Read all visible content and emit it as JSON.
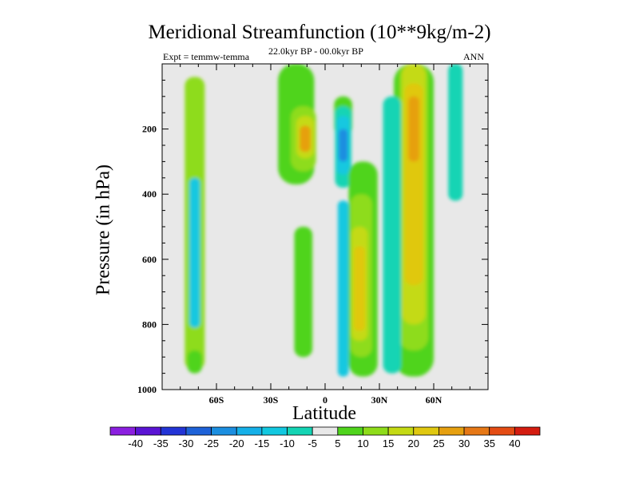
{
  "chart_data": {
    "type": "contour",
    "title": "Meridional Streamfunction (10**9kg/m-2)",
    "subtitle_left": "Expt = temmw-temma",
    "subtitle_center": "22.0kyr BP - 00.0kyr BP",
    "subtitle_right": "ANN",
    "xlabel": "Latitude",
    "ylabel": "Pressure (in hPa)",
    "xlim": [
      -90,
      90
    ],
    "ylim": [
      1000,
      0
    ],
    "x_ticks": [
      {
        "value": -60,
        "label": "60S"
      },
      {
        "value": -30,
        "label": "30S"
      },
      {
        "value": 0,
        "label": "0"
      },
      {
        "value": 30,
        "label": "30N"
      },
      {
        "value": 60,
        "label": "60N"
      }
    ],
    "y_ticks": [
      {
        "value": 200,
        "label": "200"
      },
      {
        "value": 400,
        "label": "400"
      },
      {
        "value": 600,
        "label": "600"
      },
      {
        "value": 800,
        "label": "800"
      },
      {
        "value": 1000,
        "label": "1000"
      }
    ],
    "colorbar": {
      "labels": [
        "-40",
        "-35",
        "-30",
        "-25",
        "-20",
        "-15",
        "-10",
        "-5",
        "5",
        "10",
        "15",
        "20",
        "25",
        "30",
        "35",
        "40"
      ],
      "colors": [
        "#8b1fe0",
        "#5a14d4",
        "#2334d6",
        "#1e62d8",
        "#1b8ee0",
        "#15b0e8",
        "#12c8e0",
        "#14d4b4",
        "#e8e8e8",
        "#4fd41c",
        "#8edc1a",
        "#c4da14",
        "#e0c810",
        "#e6a010",
        "#e67816",
        "#e44c14",
        "#d41c10"
      ]
    },
    "contour_cells": [
      {
        "lat": -72,
        "p": 40,
        "w": 11,
        "h": 900,
        "c": 10
      },
      {
        "lat": -72,
        "p": 350,
        "w": 6,
        "h": 460,
        "c": 6
      },
      {
        "lat": -72,
        "p": 880,
        "w": 8,
        "h": 70,
        "c": 9
      },
      {
        "lat": -41,
        "p": 185,
        "w": 8,
        "h": 100,
        "c": 8
      },
      {
        "lat": -16,
        "p": 0,
        "w": 20,
        "h": 370,
        "c": 9
      },
      {
        "lat": -12,
        "p": 130,
        "w": 14,
        "h": 200,
        "c": 10
      },
      {
        "lat": -11,
        "p": 160,
        "w": 10,
        "h": 130,
        "c": 11
      },
      {
        "lat": -11,
        "p": 190,
        "w": 6,
        "h": 80,
        "c": 13
      },
      {
        "lat": -12,
        "p": 500,
        "w": 10,
        "h": 400,
        "c": 9
      },
      {
        "lat": 10,
        "p": 100,
        "w": 10,
        "h": 120,
        "c": 9
      },
      {
        "lat": 10,
        "p": 130,
        "w": 9,
        "h": 250,
        "c": 7
      },
      {
        "lat": 10,
        "p": 160,
        "w": 7,
        "h": 180,
        "c": 6
      },
      {
        "lat": 10,
        "p": 200,
        "w": 5,
        "h": 100,
        "c": 4
      },
      {
        "lat": 10,
        "p": 420,
        "w": 6,
        "h": 540,
        "c": 6
      },
      {
        "lat": 21,
        "p": 300,
        "w": 16,
        "h": 660,
        "c": 9
      },
      {
        "lat": 20,
        "p": 400,
        "w": 12,
        "h": 500,
        "c": 10
      },
      {
        "lat": 19,
        "p": 500,
        "w": 9,
        "h": 350,
        "c": 11
      },
      {
        "lat": 19,
        "p": 560,
        "w": 6,
        "h": 260,
        "c": 12
      },
      {
        "lat": 49,
        "p": 0,
        "w": 22,
        "h": 960,
        "c": 9
      },
      {
        "lat": 49,
        "p": 0,
        "w": 16,
        "h": 880,
        "c": 10
      },
      {
        "lat": 49,
        "p": 0,
        "w": 13,
        "h": 800,
        "c": 11
      },
      {
        "lat": 49,
        "p": 60,
        "w": 10,
        "h": 620,
        "c": 12
      },
      {
        "lat": 49,
        "p": 100,
        "w": 6,
        "h": 200,
        "c": 13
      },
      {
        "lat": 37,
        "p": 100,
        "w": 10,
        "h": 850,
        "c": 7
      },
      {
        "lat": 72,
        "p": 0,
        "w": 8,
        "h": 420,
        "c": 7
      }
    ]
  }
}
